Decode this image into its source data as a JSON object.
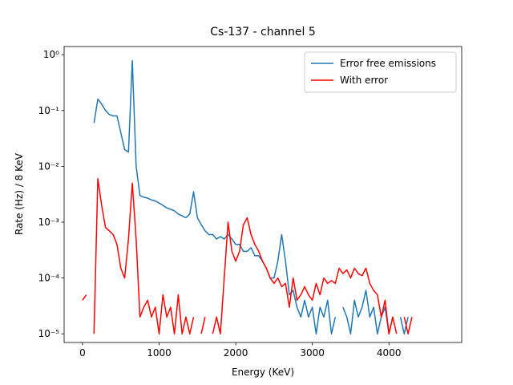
{
  "chart_data": {
    "type": "line",
    "title": "Cs-137 - channel 5",
    "x_label": "Energy (KeV)",
    "y_label": "Rate (Hz) / 8 KeV",
    "log_y": true,
    "legend": "upper right",
    "xlim": [
      -240,
      4950
    ],
    "ylim": [
      7e-06,
      1.4
    ],
    "xticks": [
      0,
      1000,
      2000,
      3000,
      4000
    ],
    "yticks": [
      {
        "value": 1e-05,
        "label": "10⁻⁵"
      },
      {
        "value": 0.0001,
        "label": "10⁻⁴"
      },
      {
        "value": 0.001,
        "label": "10⁻³"
      },
      {
        "value": 0.01,
        "label": "10⁻²"
      },
      {
        "value": 0.1,
        "label": "10⁻¹"
      },
      {
        "value": 1,
        "label": "10⁰"
      }
    ],
    "x": [
      0,
      50,
      100,
      150,
      200,
      250,
      300,
      350,
      400,
      450,
      500,
      550,
      600,
      650,
      700,
      750,
      800,
      850,
      900,
      950,
      1000,
      1050,
      1100,
      1150,
      1200,
      1250,
      1300,
      1350,
      1400,
      1450,
      1500,
      1550,
      1600,
      1650,
      1700,
      1750,
      1800,
      1850,
      1900,
      1950,
      2000,
      2050,
      2100,
      2150,
      2200,
      2250,
      2300,
      2350,
      2400,
      2450,
      2500,
      2550,
      2600,
      2650,
      2700,
      2750,
      2800,
      2850,
      2900,
      2950,
      3000,
      3050,
      3100,
      3150,
      3200,
      3250,
      3300,
      3350,
      3400,
      3450,
      3500,
      3550,
      3600,
      3650,
      3700,
      3750,
      3800,
      3850,
      3900,
      3950,
      4000,
      4050,
      4100,
      4150,
      4200,
      4250,
      4300,
      4350,
      4400,
      4450,
      4500,
      4550,
      4600,
      4650,
      4700,
      4750
    ],
    "series": [
      {
        "name": "Error free emissions",
        "color": "#1f77b4",
        "values": [
          null,
          null,
          null,
          0.06,
          0.16,
          0.13,
          0.1,
          0.085,
          0.08,
          0.08,
          0.04,
          0.02,
          0.018,
          0.78,
          0.01,
          0.003,
          0.0028,
          0.0027,
          0.0025,
          0.0024,
          0.0022,
          0.002,
          0.0018,
          0.0017,
          0.0016,
          0.0014,
          0.0013,
          0.0012,
          0.0014,
          0.0035,
          0.0012,
          0.0009,
          0.0007,
          0.0006,
          0.0006,
          0.0005,
          0.00055,
          0.0005,
          0.0006,
          0.0005,
          0.0004,
          0.0004,
          0.0003,
          0.0003,
          0.00035,
          0.00025,
          0.00025,
          0.0002,
          0.00015,
          0.0001,
          0.0001,
          0.0002,
          0.0006,
          0.0002,
          5e-05,
          6e-05,
          3e-05,
          2e-05,
          4e-05,
          2e-05,
          3e-05,
          1e-05,
          3e-05,
          2e-05,
          4e-05,
          1e-05,
          2e-05,
          null,
          3e-05,
          2e-05,
          1e-05,
          4e-05,
          2e-05,
          3e-05,
          6e-05,
          2e-05,
          3e-05,
          1e-05,
          2e-05,
          3e-05,
          1e-05,
          2e-05,
          null,
          2e-05,
          1e-05,
          2e-05,
          null,
          null,
          null,
          null,
          null,
          null,
          null,
          null,
          null,
          null
        ]
      },
      {
        "name": "With error",
        "color": "#ff0000",
        "values": [
          4e-05,
          5e-05,
          null,
          1e-05,
          0.006,
          0.002,
          0.0008,
          0.0007,
          0.0006,
          0.0004,
          0.00015,
          0.0001,
          0.0005,
          0.005,
          0.0005,
          2e-05,
          3e-05,
          4e-05,
          2e-05,
          3e-05,
          1e-05,
          5e-05,
          2e-05,
          3e-05,
          1e-05,
          5e-05,
          1e-05,
          2e-05,
          1e-05,
          2e-05,
          null,
          1e-05,
          2e-05,
          null,
          1e-05,
          2e-05,
          1e-05,
          0.0001,
          0.001,
          0.0003,
          0.0002,
          0.0003,
          0.0009,
          0.0012,
          0.0006,
          0.0004,
          0.0003,
          0.0002,
          0.00015,
          0.0001,
          8e-05,
          0.0001,
          7e-05,
          8e-05,
          3e-05,
          0.0001,
          4e-05,
          5e-05,
          7e-05,
          5e-05,
          4e-05,
          8e-05,
          5e-05,
          0.0001,
          8e-05,
          9e-05,
          8e-05,
          0.00015,
          0.00012,
          0.00014,
          0.0001,
          0.00015,
          0.00012,
          0.00011,
          0.00015,
          8e-05,
          6e-05,
          5e-05,
          2e-05,
          4e-05,
          1e-05,
          2e-05,
          1e-05,
          null,
          2e-05,
          1e-05,
          2e-05,
          null,
          1e-05,
          null,
          1e-05,
          null,
          1e-05,
          null,
          1e-05,
          null
        ]
      }
    ]
  }
}
